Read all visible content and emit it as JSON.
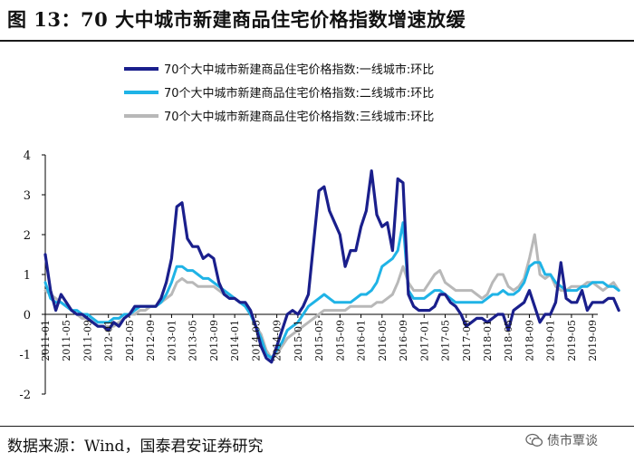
{
  "figure": {
    "title": "图 13：70 大中城市新建商品住宅价格指数增速放缓",
    "source": "数据来源：Wind，国泰君安证券研究",
    "watermark": "债市覃谈",
    "watermark_icon": "wechat-icon"
  },
  "colors": {
    "tier1": "#1a1f8c",
    "tier2": "#1fb3e6",
    "tier3": "#b8b8b8",
    "axis": "#000000"
  },
  "chart_data": {
    "type": "line",
    "title": "70 大中城市新建商品住宅价格指数增速放缓",
    "xlabel": "",
    "ylabel": "",
    "ylim": [
      -2,
      4
    ],
    "yticks": [
      -2,
      -1,
      0,
      1,
      2,
      3,
      4
    ],
    "legend_position": "top",
    "xtick_labels": [
      "2011-01",
      "2011-05",
      "2011-09",
      "2012-01",
      "2012-05",
      "2012-09",
      "2013-01",
      "2013-05",
      "2013-09",
      "2014-01",
      "2014-05",
      "2014-09",
      "2015-01",
      "2015-05",
      "2015-09",
      "2016-01",
      "2016-05",
      "2016-09",
      "2017-01",
      "2017-05",
      "2017-09",
      "2018-01",
      "2018-05",
      "2018-09",
      "2019-01",
      "2019-05",
      "2019-09"
    ],
    "x_start": "2011-01",
    "x_end": "2019-10",
    "series": [
      {
        "name": "70个大中城市新建商品住宅价格指数:一线城市:环比",
        "color_key": "tier1",
        "start": "2011-01",
        "values": [
          1.5,
          0.6,
          0.1,
          0.5,
          0.3,
          0.1,
          0.0,
          0.0,
          -0.1,
          -0.2,
          -0.3,
          -0.3,
          -0.4,
          -0.2,
          -0.3,
          -0.1,
          0.0,
          0.2,
          0.2,
          0.2,
          0.2,
          0.2,
          0.4,
          0.8,
          1.4,
          2.7,
          2.8,
          1.9,
          1.7,
          1.7,
          1.4,
          1.5,
          1.4,
          0.8,
          0.5,
          0.4,
          0.4,
          0.3,
          0.3,
          0.1,
          -0.3,
          -0.8,
          -1.1,
          -1.2,
          -0.8,
          -0.4,
          0.0,
          0.1,
          0.0,
          0.2,
          0.5,
          1.8,
          3.1,
          3.2,
          2.6,
          2.3,
          2.0,
          1.2,
          1.6,
          1.6,
          2.2,
          2.6,
          3.6,
          2.5,
          2.2,
          2.3,
          1.6,
          3.4,
          3.3,
          0.5,
          0.2,
          0.1,
          0.1,
          0.1,
          0.2,
          0.5,
          0.5,
          0.3,
          0.2,
          0.0,
          -0.3,
          -0.2,
          -0.1,
          -0.1,
          -0.2,
          -0.1,
          0.0,
          0.0,
          -0.4,
          0.1,
          0.2,
          0.3,
          0.6,
          0.2,
          -0.2,
          0.0,
          0.0,
          0.3,
          1.3,
          0.4,
          0.3,
          0.3,
          0.6,
          0.1,
          0.3,
          0.3,
          0.3,
          0.4,
          0.4,
          0.1
        ]
      },
      {
        "name": "70个大中城市新建商品住宅价格指数:二线城市:环比",
        "color_key": "tier2",
        "start": "2011-01",
        "values": [
          0.8,
          0.4,
          0.3,
          0.3,
          0.2,
          0.1,
          0.1,
          0.0,
          0.0,
          -0.1,
          -0.2,
          -0.2,
          -0.2,
          -0.1,
          -0.1,
          0.0,
          0.0,
          0.1,
          0.2,
          0.2,
          0.2,
          0.2,
          0.3,
          0.5,
          0.8,
          1.2,
          1.2,
          1.1,
          1.1,
          1.0,
          0.9,
          0.9,
          0.8,
          0.7,
          0.6,
          0.5,
          0.4,
          0.3,
          0.2,
          0.0,
          -0.3,
          -0.6,
          -1.0,
          -1.1,
          -0.9,
          -0.7,
          -0.4,
          -0.3,
          -0.2,
          0.0,
          0.2,
          0.3,
          0.4,
          0.5,
          0.4,
          0.3,
          0.3,
          0.3,
          0.3,
          0.4,
          0.5,
          0.5,
          0.6,
          0.8,
          1.2,
          1.3,
          1.4,
          1.6,
          2.3,
          0.6,
          0.4,
          0.4,
          0.4,
          0.5,
          0.6,
          0.6,
          0.5,
          0.4,
          0.3,
          0.3,
          0.3,
          0.3,
          0.3,
          0.3,
          0.4,
          0.5,
          0.5,
          0.6,
          0.5,
          0.5,
          0.6,
          0.8,
          1.2,
          1.3,
          1.3,
          1.0,
          1.0,
          0.8,
          0.7,
          0.6,
          0.6,
          0.6,
          0.7,
          0.7,
          0.8,
          0.8,
          0.8,
          0.7,
          0.7,
          0.6
        ]
      },
      {
        "name": "70个大中城市新建商品住宅价格指数:三线城市:环比",
        "color_key": "tier3",
        "start": "2011-01",
        "values": [
          0.6,
          0.5,
          0.4,
          0.3,
          0.2,
          0.1,
          0.0,
          -0.1,
          -0.1,
          -0.2,
          -0.3,
          -0.3,
          -0.3,
          -0.3,
          -0.2,
          -0.1,
          0.0,
          0.0,
          0.1,
          0.1,
          0.2,
          0.2,
          0.3,
          0.4,
          0.5,
          0.8,
          0.9,
          0.8,
          0.8,
          0.7,
          0.7,
          0.7,
          0.7,
          0.6,
          0.5,
          0.5,
          0.4,
          0.3,
          0.2,
          0.0,
          -0.3,
          -0.5,
          -0.9,
          -1.1,
          -1.0,
          -0.8,
          -0.6,
          -0.5,
          -0.4,
          -0.3,
          -0.2,
          -0.1,
          0.0,
          0.1,
          0.1,
          0.1,
          0.1,
          0.1,
          0.2,
          0.2,
          0.2,
          0.2,
          0.2,
          0.3,
          0.3,
          0.4,
          0.5,
          0.8,
          1.2,
          0.8,
          0.6,
          0.6,
          0.6,
          0.8,
          1.0,
          1.1,
          0.8,
          0.7,
          0.6,
          0.6,
          0.6,
          0.6,
          0.5,
          0.4,
          0.5,
          0.8,
          1.0,
          1.0,
          0.7,
          0.6,
          0.7,
          0.9,
          1.4,
          2.0,
          1.0,
          0.9,
          1.0,
          0.7,
          0.6,
          0.6,
          0.7,
          0.7,
          0.7,
          0.8,
          0.8,
          0.7,
          0.6,
          0.7,
          0.8,
          0.6
        ]
      }
    ]
  }
}
